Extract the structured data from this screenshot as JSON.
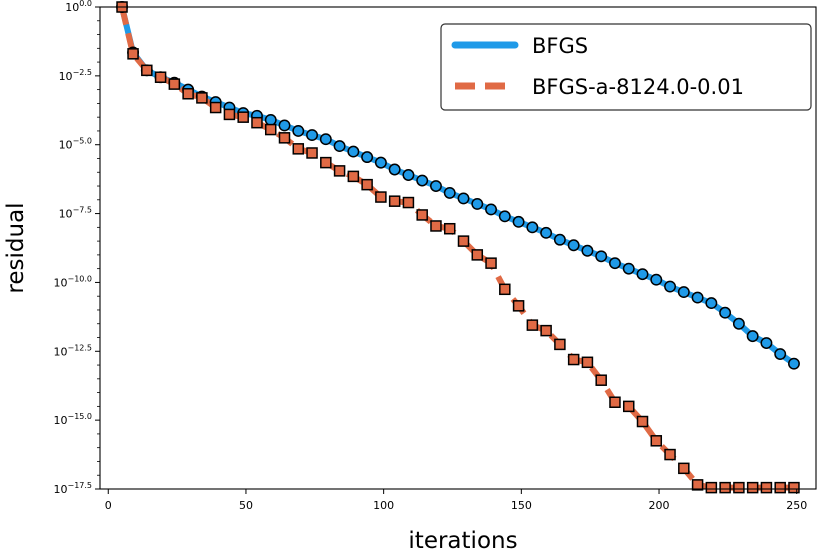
{
  "chart_data": {
    "type": "line",
    "title": "",
    "xlabel": "iterations",
    "ylabel": "residual",
    "xlim": [
      -3,
      257
    ],
    "ylim_log10": [
      -17.5,
      0.0
    ],
    "y_scale": "log10",
    "grid": false,
    "legend_position": "top-right",
    "x_ticks": [
      "0",
      "50",
      "100",
      "150",
      "200",
      "250"
    ],
    "y_ticks": [
      {
        "base": "10",
        "exp": "0.0"
      },
      {
        "base": "10",
        "exp": "−2.5"
      },
      {
        "base": "10",
        "exp": "−5.0"
      },
      {
        "base": "10",
        "exp": "−7.5"
      },
      {
        "base": "10",
        "exp": "−10.0"
      },
      {
        "base": "10",
        "exp": "−12.5"
      },
      {
        "base": "10",
        "exp": "−15.0"
      },
      {
        "base": "10",
        "exp": "−17.5"
      }
    ],
    "series": [
      {
        "name": "BFGS",
        "line_color": "#1f9ae8",
        "marker": "circle",
        "marker_color": "#1f9ae8",
        "marker_edge": "#000000",
        "x": [
          5,
          9,
          14,
          19,
          24,
          29,
          34,
          39,
          44,
          49,
          54,
          59,
          64,
          69,
          74,
          79,
          84,
          89,
          94,
          99,
          104,
          109,
          114,
          119,
          124,
          129,
          134,
          139,
          144,
          149,
          154,
          159,
          164,
          169,
          174,
          179,
          184,
          189,
          194,
          199,
          204,
          209,
          214,
          219,
          224,
          229,
          234,
          239,
          244,
          249
        ],
        "y_log10": [
          0.0,
          -1.65,
          -2.3,
          -2.55,
          -2.75,
          -3.0,
          -3.25,
          -3.45,
          -3.65,
          -3.85,
          -3.95,
          -4.1,
          -4.3,
          -4.5,
          -4.65,
          -4.8,
          -5.05,
          -5.25,
          -5.45,
          -5.65,
          -5.9,
          -6.1,
          -6.3,
          -6.5,
          -6.75,
          -6.95,
          -7.15,
          -7.35,
          -7.6,
          -7.8,
          -8.0,
          -8.2,
          -8.45,
          -8.65,
          -8.85,
          -9.05,
          -9.3,
          -9.5,
          -9.7,
          -9.9,
          -10.15,
          -10.35,
          -10.55,
          -10.75,
          -11.1,
          -11.5,
          -11.95,
          -12.2,
          -12.6,
          -12.95
        ]
      },
      {
        "name": "BFGS-a-8124.0-0.01",
        "line_color": "#e06a45",
        "marker": "square",
        "marker_color": "#e06a45",
        "marker_edge": "#000000",
        "x": [
          5,
          9,
          14,
          19,
          24,
          29,
          34,
          39,
          44,
          49,
          54,
          59,
          64,
          69,
          74,
          79,
          84,
          89,
          94,
          99,
          104,
          109,
          114,
          119,
          124,
          129,
          134,
          139,
          144,
          149,
          154,
          159,
          164,
          169,
          174,
          179,
          184,
          189,
          194,
          199,
          204,
          209,
          214,
          219,
          224,
          229,
          234,
          239,
          244,
          249
        ],
        "y_log10": [
          0.0,
          -1.7,
          -2.3,
          -2.55,
          -2.8,
          -3.15,
          -3.3,
          -3.65,
          -3.9,
          -4.0,
          -4.2,
          -4.45,
          -4.75,
          -5.15,
          -5.3,
          -5.65,
          -5.95,
          -6.15,
          -6.45,
          -6.9,
          -7.05,
          -7.1,
          -7.55,
          -7.95,
          -8.05,
          -8.5,
          -9.0,
          -9.3,
          -10.25,
          -10.85,
          -11.55,
          -11.75,
          -12.25,
          -12.8,
          -12.9,
          -13.55,
          -14.35,
          -14.5,
          -15.05,
          -15.75,
          -16.25,
          -16.75,
          -17.35,
          -17.45,
          -17.45,
          -17.45,
          -17.45,
          -17.45,
          -17.45,
          -17.45
        ]
      }
    ]
  }
}
